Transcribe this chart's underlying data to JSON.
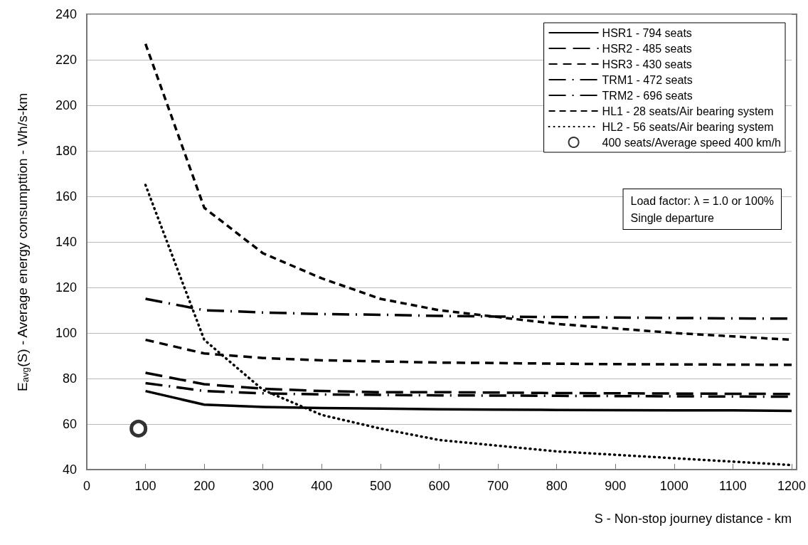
{
  "chart_data": {
    "type": "line",
    "xlabel": "S - Non-stop journey distance - km",
    "ylabel": "E$_{avg}$(S) - Average energy consumpttion - Wh/s-km",
    "x": [
      100,
      200,
      300,
      400,
      500,
      600,
      700,
      800,
      900,
      1000,
      1100,
      1200
    ],
    "xlim": [
      0,
      1200
    ],
    "xticks": [
      0,
      100,
      200,
      300,
      400,
      500,
      600,
      700,
      800,
      900,
      1000,
      1100,
      1200
    ],
    "ylim": [
      40,
      240
    ],
    "yticks": [
      40,
      60,
      80,
      100,
      120,
      140,
      160,
      180,
      200,
      220,
      240
    ],
    "grid": "y",
    "legend": "top right",
    "marker": "none",
    "annotations": [
      "Load factor: λ = 1.0 or 100%\nSingle departure"
    ],
    "series": [
      {
        "name": "HSR1 - 794 seats",
        "color": "#000000",
        "line_style": "solid",
        "values": [
          74.5,
          68.5,
          67.5,
          67,
          66.8,
          66.5,
          66.3,
          66.2,
          66.1,
          66,
          66,
          65.8
        ]
      },
      {
        "name": "HSR2 - 485 seats",
        "color": "#000000",
        "line_style": "longdash",
        "values": [
          82.5,
          77.5,
          75.5,
          74.5,
          74,
          74,
          73.8,
          73.6,
          73.5,
          73.4,
          73.3,
          73.2
        ]
      },
      {
        "name": "HSR3 - 430 seats",
        "color": "#000000",
        "line_style": "dashed",
        "values": [
          97,
          91,
          89,
          88,
          87.5,
          87,
          86.8,
          86.5,
          86.3,
          86.2,
          86.1,
          86
        ]
      },
      {
        "name": "TRM1 - 472 seats",
        "color": "#000000",
        "line_style": "dashdot",
        "values": [
          115,
          110,
          109,
          108.3,
          108,
          107.5,
          107.2,
          107,
          106.8,
          106.6,
          106.4,
          106.3
        ]
      },
      {
        "name": "TRM2 - 696 seats",
        "color": "#000000",
        "line_style": "dashdot",
        "values": [
          78,
          74.5,
          73.5,
          73,
          72.8,
          72.6,
          72.5,
          72.4,
          72.3,
          72.2,
          72.1,
          72
        ]
      },
      {
        "name": "HL1 - 28 seats/Air bearing system",
        "color": "#000000",
        "line_style": "shortdash",
        "values": [
          227,
          155,
          135,
          124,
          115,
          110,
          107,
          104,
          102,
          100,
          98.5,
          97
        ]
      },
      {
        "name": "HL2 - 56 seats/Air bearing system",
        "color": "#000000",
        "line_style": "dotted",
        "values": [
          165,
          97,
          75,
          64,
          58,
          53,
          50.5,
          48,
          46.5,
          45,
          43.5,
          42
        ]
      },
      {
        "name": "400 seats/Average speed 400 km/h",
        "type": "scatter",
        "marker": "circle",
        "color": "#000000",
        "x": [
          88
        ],
        "values": [
          58
        ]
      }
    ]
  }
}
